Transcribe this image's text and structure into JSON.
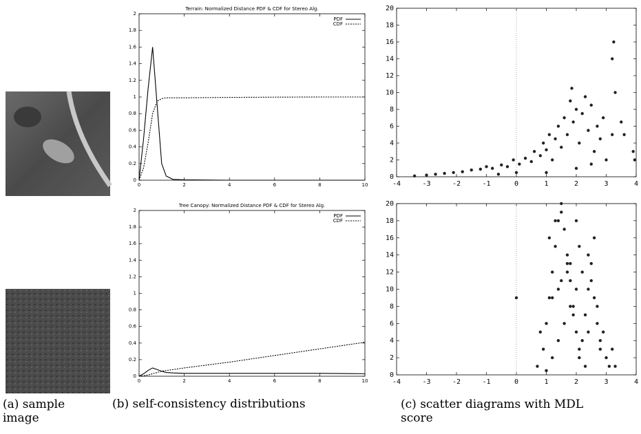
{
  "captions": {
    "a": "(a) sample image",
    "b": "(b) self-consistency distributions",
    "c": "(c) scatter diagrams with MDL score"
  },
  "chart_data": [
    {
      "type": "line",
      "title": "Terrain: Normalized Distance PDF & CDF for Stereo Alg.",
      "x": [
        0,
        0.2,
        0.4,
        0.6,
        0.8,
        1,
        1.2,
        1.5,
        2,
        4,
        6,
        8,
        10
      ],
      "series": [
        {
          "name": "PDF",
          "color": "#000000",
          "dash": "solid",
          "values": [
            0,
            0.5,
            1.1,
            1.6,
            0.9,
            0.2,
            0.05,
            0.01,
            0.005,
            0,
            0,
            0,
            0
          ]
        },
        {
          "name": "CDF",
          "color": "#000000",
          "dash": "dashed",
          "values": [
            0,
            0.15,
            0.45,
            0.8,
            0.95,
            0.98,
            0.99,
            0.99,
            0.99,
            0.995,
            0.998,
            1,
            1
          ]
        }
      ],
      "xlim": [
        0,
        10
      ],
      "xticks": [
        0,
        2,
        4,
        6,
        8,
        10
      ],
      "ylim": [
        0,
        2
      ],
      "yticks": [
        0,
        0.2,
        0.4,
        0.6,
        0.8,
        1,
        1.2,
        1.4,
        1.6,
        1.8,
        2
      ],
      "legend": "top-right"
    },
    {
      "type": "line",
      "title": "Tree Canopy: Normalized Distance PDF & CDF for Stereo Alg.",
      "x": [
        0,
        0.2,
        0.4,
        0.6,
        0.8,
        1,
        1.2,
        1.5,
        2,
        4,
        6,
        8,
        10
      ],
      "series": [
        {
          "name": "PDF",
          "color": "#000000",
          "dash": "solid",
          "values": [
            0,
            0.03,
            0.07,
            0.1,
            0.08,
            0.06,
            0.045,
            0.04,
            0.035,
            0.035,
            0.035,
            0.035,
            0.03
          ]
        },
        {
          "name": "CDF",
          "color": "#000000",
          "dash": "dashed",
          "values": [
            0,
            0.005,
            0.015,
            0.03,
            0.045,
            0.06,
            0.07,
            0.08,
            0.1,
            0.17,
            0.25,
            0.33,
            0.41
          ]
        }
      ],
      "xlim": [
        0,
        10
      ],
      "xticks": [
        0,
        2,
        4,
        6,
        8,
        10
      ],
      "ylim": [
        0,
        2
      ],
      "yticks": [
        0,
        0.2,
        0.4,
        0.6,
        0.8,
        1,
        1.2,
        1.4,
        1.6,
        1.8,
        2
      ],
      "legend": "top-right"
    },
    {
      "type": "scatter",
      "color": "#222222",
      "vline": 0,
      "x": [
        -3.4,
        -3,
        -2.7,
        -2.4,
        -2.1,
        -1.8,
        -1.5,
        -1.2,
        -1,
        -0.8,
        -0.5,
        -0.3,
        -0.1,
        0.1,
        0.3,
        0.5,
        0.6,
        0.8,
        0.9,
        1,
        1.1,
        1.2,
        1.3,
        1.4,
        1.5,
        1.6,
        1.7,
        1.8,
        1.85,
        1.9,
        2,
        2.1,
        2.2,
        2.3,
        2.4,
        2.5,
        2.6,
        2.7,
        2.8,
        2.9,
        3.2,
        3.25,
        3.3,
        3.2,
        3.5,
        3.6,
        3.9,
        3.95,
        0,
        -0.6,
        1,
        2,
        2.5,
        3
      ],
      "y": [
        0.1,
        0.2,
        0.3,
        0.4,
        0.5,
        0.6,
        0.8,
        0.9,
        1.2,
        1,
        1.4,
        1.2,
        2,
        1.5,
        2.2,
        1.8,
        3,
        2.5,
        4,
        3.2,
        5,
        2,
        4.5,
        6,
        3.5,
        7,
        5,
        9,
        10.5,
        6.5,
        8,
        4,
        7.5,
        9.5,
        5.5,
        8.5,
        3,
        6,
        4.5,
        7,
        14,
        16,
        10,
        5,
        6.5,
        5,
        3,
        2,
        0.5,
        0.3,
        0.5,
        1,
        1.5,
        2
      ],
      "xlim": [
        -4,
        4
      ],
      "xticks": [
        -4,
        -3,
        -2,
        -1,
        0,
        1,
        2,
        3,
        4
      ],
      "ylim": [
        0,
        20
      ],
      "yticks": [
        0,
        2,
        4,
        6,
        8,
        10,
        12,
        14,
        16,
        18,
        20
      ]
    },
    {
      "type": "scatter",
      "color": "#222222",
      "vline": 0,
      "x": [
        0.7,
        0.9,
        1,
        1.1,
        1.2,
        1.3,
        1.4,
        1.5,
        1.6,
        1.7,
        1.8,
        1.9,
        2,
        2.1,
        2.2,
        2.3,
        2.4,
        2.5,
        2.6,
        2.7,
        2.8,
        2.9,
        3,
        3.1,
        3.3,
        1,
        1.2,
        1.4,
        1.6,
        1.8,
        2,
        2.2,
        2.4,
        2.6,
        2.8,
        1.1,
        1.3,
        1.5,
        1.7,
        1.9,
        2.1,
        2.3,
        2.5,
        2.7,
        1.2,
        1.5,
        1.8,
        2.1,
        2.4,
        1.4,
        1.7,
        2,
        0,
        0.8,
        3.2
      ],
      "y": [
        1,
        3,
        6,
        9,
        12,
        15,
        18,
        19,
        17,
        14,
        11,
        8,
        5,
        2,
        4,
        7,
        10,
        13,
        16,
        6,
        3,
        5,
        2,
        1,
        1,
        0.5,
        2,
        4,
        6,
        8,
        10,
        12,
        14,
        9,
        4,
        16,
        18,
        20,
        13,
        7,
        3,
        1,
        11,
        8,
        9,
        11,
        13,
        15,
        5,
        10,
        12,
        18,
        9,
        5,
        3
      ],
      "xlim": [
        -4,
        4
      ],
      "xticks": [
        -4,
        -3,
        -2,
        -1,
        0,
        1,
        2,
        3,
        4
      ],
      "ylim": [
        0,
        20
      ],
      "yticks": [
        0,
        2,
        4,
        6,
        8,
        10,
        12,
        14,
        16,
        18,
        20
      ]
    }
  ]
}
